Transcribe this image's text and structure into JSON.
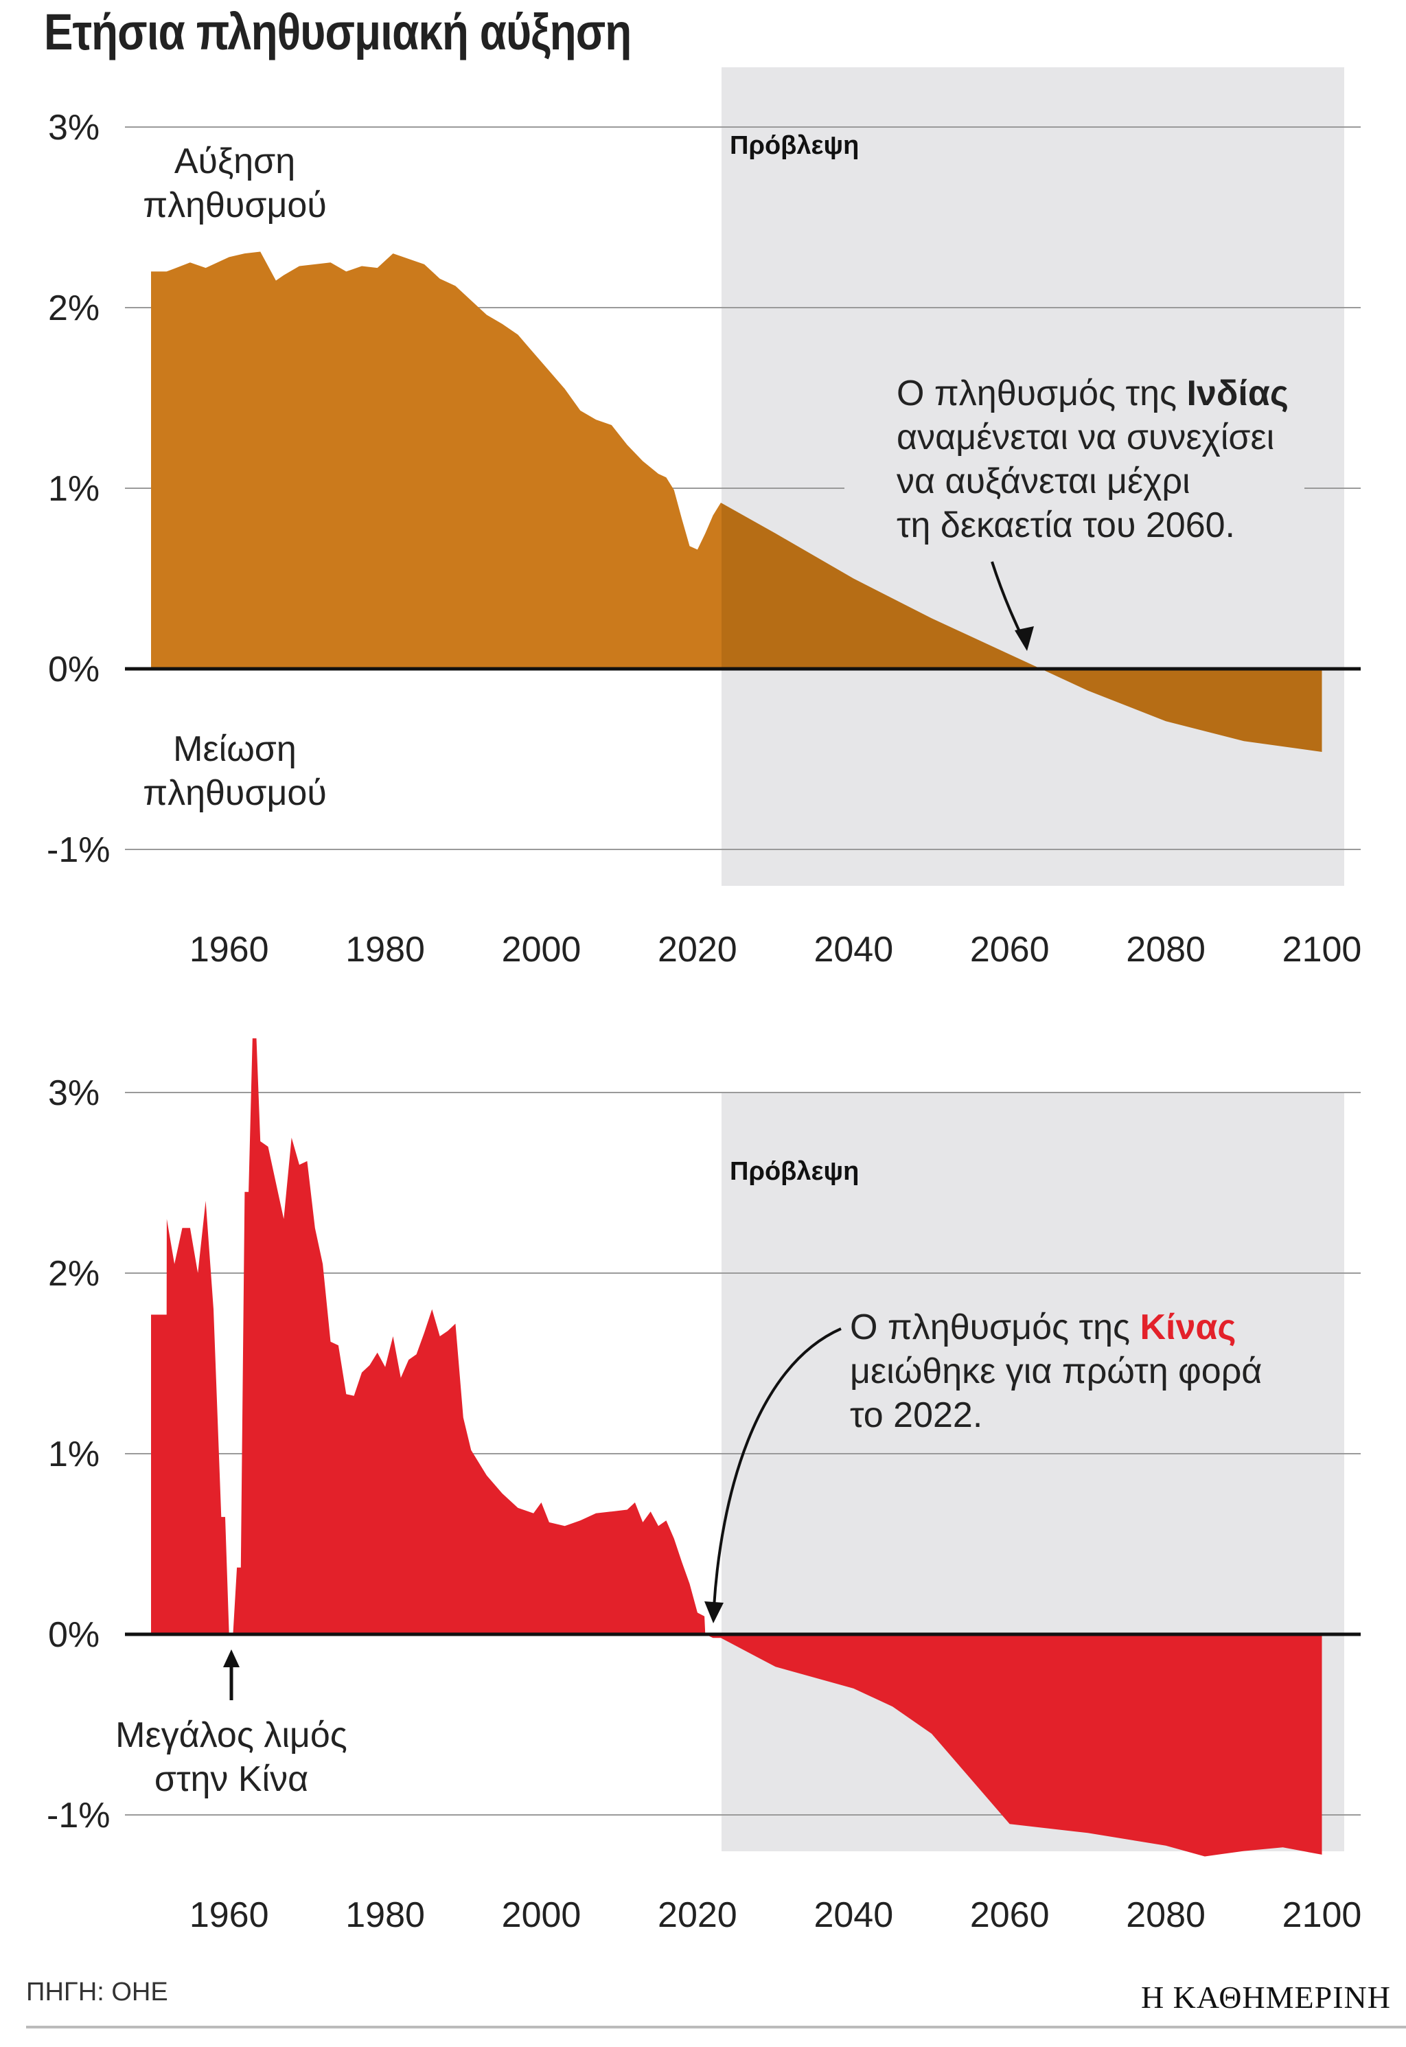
{
  "title": "Ετήσια πληθυσμιακή αύξηση",
  "source": "ΠΗΓΗ: ΟΗΕ",
  "brand": "Η ΚΑΘΗΜΕΡΙΝΗ",
  "colors": {
    "india": "#cb7a1c",
    "india_forecast": "#b66d15",
    "china": "#e3212a",
    "forecast_bg": "#e6e6e8",
    "grid": "#9a9a9a"
  },
  "chart_data": [
    {
      "type": "area",
      "id": "india",
      "series_name": "Ινδία",
      "ylabels": [
        "3%",
        "2%",
        "1%",
        "0%",
        "-1%"
      ],
      "yticks": [
        3,
        2,
        1,
        0,
        -1
      ],
      "xlabels": [
        "1960",
        "1980",
        "2000",
        "2020",
        "2040",
        "2060",
        "2080",
        "2100"
      ],
      "xticks": [
        1960,
        1980,
        2000,
        2020,
        2040,
        2060,
        2080,
        2100
      ],
      "xlim": [
        1950,
        2100
      ],
      "ylim": [
        -1,
        3
      ],
      "forecast_label": "Πρόβλεψη",
      "forecast_start": 2023,
      "growth_label": [
        "Αύξηση",
        "πληθυσμού"
      ],
      "decline_label": [
        "Μείωση",
        "πληθυσμού"
      ],
      "annotation": {
        "lines": [
          "Ο πληθυσμός της ",
          "αναμένεται να συνεχίσει",
          "να αυξάνεται μέχρι",
          "τη δεκαετία του 2060."
        ],
        "highlight": "Ινδίας"
      },
      "x": [
        1950,
        1952,
        1955,
        1957,
        1960,
        1962,
        1964,
        1966,
        1967,
        1969,
        1971,
        1973,
        1975,
        1977,
        1979,
        1981,
        1983,
        1985,
        1987,
        1989,
        1991,
        1993,
        1995,
        1997,
        1999,
        2001,
        2003,
        2005,
        2007,
        2009,
        2011,
        2013,
        2015,
        2016,
        2017,
        2018,
        2019,
        2020,
        2021,
        2022,
        2023,
        2030,
        2040,
        2050,
        2060,
        2064,
        2070,
        2080,
        2090,
        2100
      ],
      "values": [
        2.2,
        2.2,
        2.25,
        2.22,
        2.28,
        2.3,
        2.31,
        2.15,
        2.18,
        2.23,
        2.24,
        2.25,
        2.2,
        2.23,
        2.22,
        2.3,
        2.27,
        2.24,
        2.16,
        2.12,
        2.04,
        1.96,
        1.91,
        1.85,
        1.75,
        1.65,
        1.55,
        1.43,
        1.38,
        1.35,
        1.24,
        1.15,
        1.08,
        1.06,
        0.99,
        0.83,
        0.68,
        0.66,
        0.75,
        0.85,
        0.92,
        0.75,
        0.5,
        0.28,
        0.08,
        0,
        -0.12,
        -0.29,
        -0.4,
        -0.46
      ]
    },
    {
      "type": "area",
      "id": "china",
      "series_name": "Κίνα",
      "ylabels": [
        "3%",
        "2%",
        "1%",
        "0%",
        "-1%"
      ],
      "yticks": [
        3,
        2,
        1,
        0,
        -1
      ],
      "xlabels": [
        "1960",
        "1980",
        "2000",
        "2020",
        "2040",
        "2060",
        "2080",
        "2100"
      ],
      "xticks": [
        1960,
        1980,
        2000,
        2020,
        2040,
        2060,
        2080,
        2100
      ],
      "xlim": [
        1950,
        2100
      ],
      "ylim": [
        -1,
        3
      ],
      "forecast_label": "Πρόβλεψη",
      "forecast_start": 2023,
      "famine_label": [
        "Μεγάλος λιμός",
        "στην Κίνα"
      ],
      "annotation": {
        "lines": [
          "Ο πληθυσμός της ",
          "μειώθηκε για πρώτη φορά",
          "το 2022."
        ],
        "highlight": "Κίνας"
      },
      "x": [
        1950,
        1952,
        1952.01,
        1953,
        1954,
        1955,
        1956,
        1957,
        1958,
        1959,
        1959.5,
        1960,
        1960.5,
        1961,
        1961.5,
        1962,
        1962.5,
        1963,
        1963.5,
        1964,
        1965,
        1966,
        1967,
        1968,
        1969,
        1970,
        1971,
        1972,
        1973,
        1974,
        1975,
        1976,
        1977,
        1978,
        1979,
        1980,
        1981,
        1982,
        1983,
        1984,
        1985,
        1986,
        1987,
        1988,
        1989,
        1990,
        1991,
        1993,
        1995,
        1997,
        1999,
        2000,
        2001,
        2003,
        2005,
        2007,
        2009,
        2011,
        2012,
        2013,
        2014,
        2015,
        2016,
        2017,
        2018,
        2019,
        2020,
        2020.9,
        2021,
        2022,
        2023,
        2030,
        2040,
        2045,
        2050,
        2055,
        2060,
        2070,
        2080,
        2085,
        2090,
        2095,
        2100
      ],
      "values": [
        1.77,
        1.77,
        2.3,
        2.05,
        2.25,
        2.25,
        2.0,
        2.4,
        1.8,
        0.65,
        0.65,
        0,
        0,
        0.37,
        0.37,
        2.45,
        2.45,
        3.3,
        3.3,
        2.73,
        2.7,
        2.5,
        2.3,
        2.75,
        2.6,
        2.62,
        2.25,
        2.05,
        1.62,
        1.6,
        1.33,
        1.32,
        1.45,
        1.49,
        1.56,
        1.48,
        1.65,
        1.42,
        1.52,
        1.55,
        1.67,
        1.8,
        1.65,
        1.68,
        1.72,
        1.2,
        1.02,
        0.88,
        0.78,
        0.7,
        0.67,
        0.73,
        0.62,
        0.6,
        0.63,
        0.67,
        0.68,
        0.69,
        0.73,
        0.62,
        0.68,
        0.6,
        0.63,
        0.53,
        0.4,
        0.28,
        0.12,
        0.1,
        0,
        -0.02,
        -0.02,
        -0.18,
        -0.3,
        -0.4,
        -0.55,
        -0.8,
        -1.05,
        -1.1,
        -1.17,
        -1.23,
        -1.2,
        -1.18,
        -1.22
      ]
    }
  ]
}
